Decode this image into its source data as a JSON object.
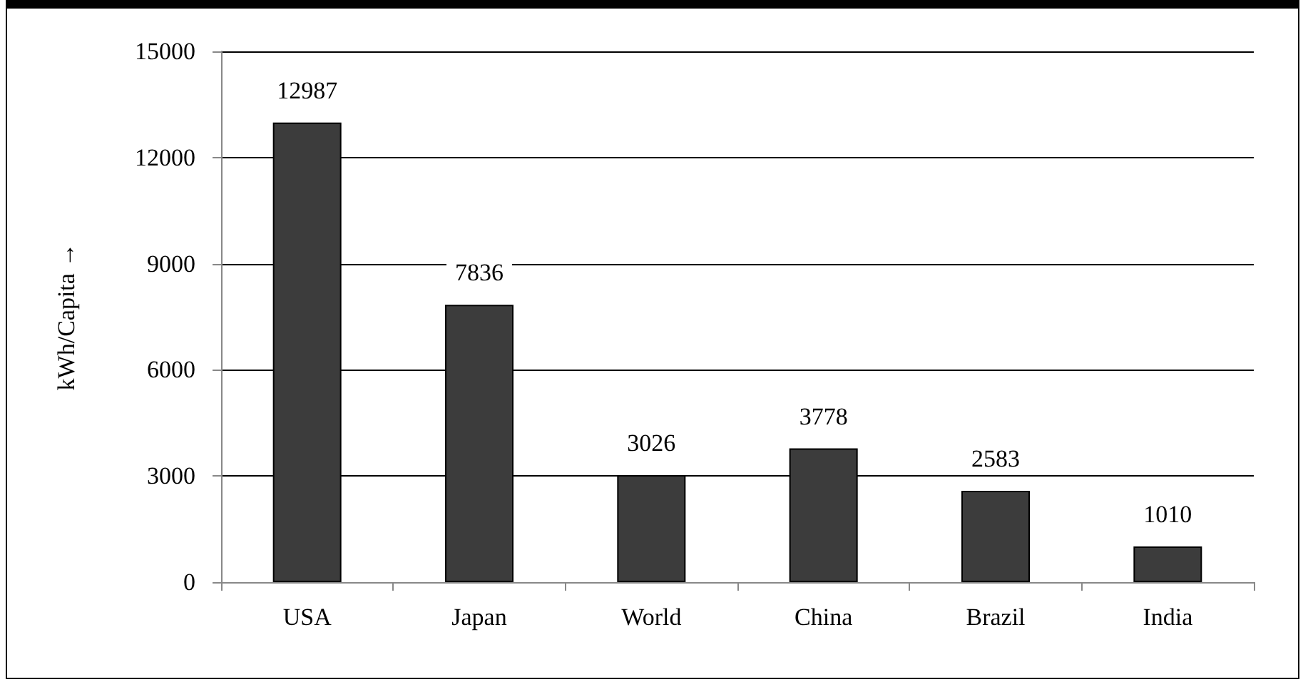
{
  "chart_data": {
    "type": "bar",
    "ylabel": "kWh/Capita →",
    "categories": [
      "USA",
      "Japan",
      "World",
      "China",
      "Brazil",
      "India"
    ],
    "values": [
      12987,
      7836,
      3026,
      3778,
      2583,
      1010
    ],
    "color": "#3c3c3c",
    "ylim": [
      0,
      15000
    ],
    "yticks": [
      0,
      3000,
      6000,
      9000,
      12000,
      15000
    ],
    "grid": "y",
    "data_labels": true
  }
}
